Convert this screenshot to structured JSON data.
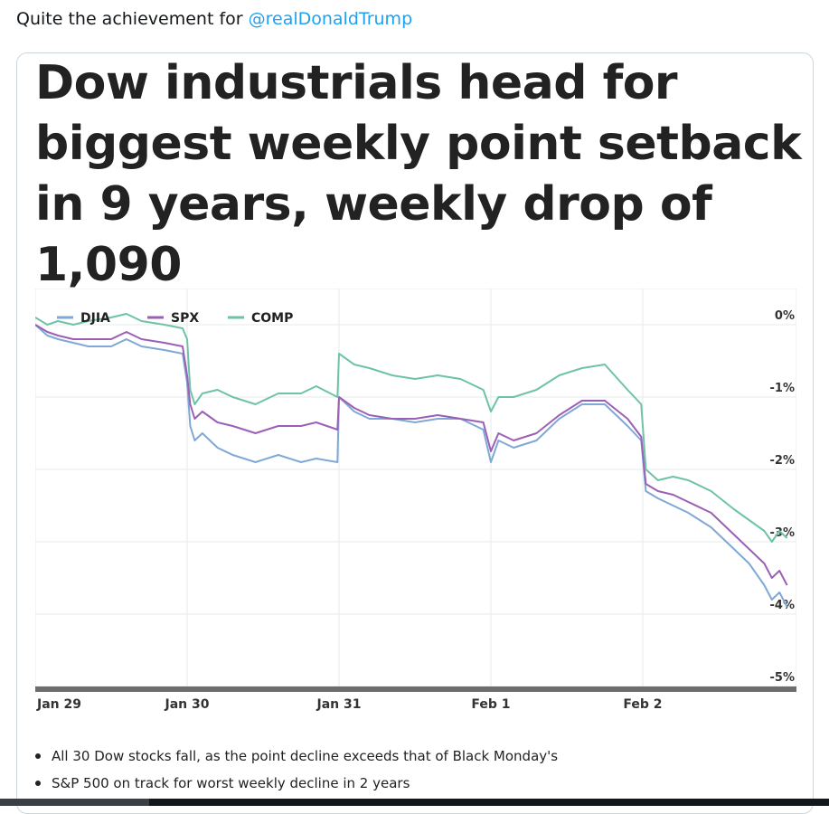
{
  "tweet": {
    "text": "Quite the achievement for",
    "mention": "@realDonaldTrump"
  },
  "card": {
    "headline_lines": [
      "Dow industrials head for",
      "biggest weekly point setback",
      "in 9 years, weekly drop of",
      "1,090"
    ],
    "bullets": [
      "All 30 Dow stocks fall, as the point decline exceeds that of Black Monday's",
      "S&P 500 on track for worst weekly decline in 2 years"
    ]
  },
  "colors": {
    "DJIA": "#7fa8d6",
    "SPX": "#9b5fb6",
    "COMP": "#6ec3a6",
    "mention": "#1da1f2"
  },
  "chart_data": {
    "type": "line",
    "x_categories": [
      "Jan 29",
      "Jan 30",
      "Jan 31",
      "Feb 1",
      "Feb 2"
    ],
    "y_ticks": [
      "0%",
      "-1%",
      "-2%",
      "-3%",
      "-4%",
      "-5%"
    ],
    "ylim": [
      -5,
      0.5
    ],
    "grid": true,
    "legend_position": "top-left",
    "series": [
      {
        "name": "DJIA",
        "values": [
          [
            0.0,
            0.0
          ],
          [
            0.08,
            -0.15
          ],
          [
            0.15,
            -0.2
          ],
          [
            0.25,
            -0.25
          ],
          [
            0.35,
            -0.3
          ],
          [
            0.5,
            -0.3
          ],
          [
            0.6,
            -0.2
          ],
          [
            0.7,
            -0.3
          ],
          [
            0.85,
            -0.35
          ],
          [
            0.97,
            -0.4
          ],
          [
            1.0,
            -0.8
          ],
          [
            1.02,
            -1.4
          ],
          [
            1.05,
            -1.6
          ],
          [
            1.1,
            -1.5
          ],
          [
            1.2,
            -1.7
          ],
          [
            1.3,
            -1.8
          ],
          [
            1.45,
            -1.9
          ],
          [
            1.6,
            -1.8
          ],
          [
            1.75,
            -1.9
          ],
          [
            1.85,
            -1.85
          ],
          [
            1.99,
            -1.9
          ],
          [
            2.0,
            -1.0
          ],
          [
            2.1,
            -1.2
          ],
          [
            2.2,
            -1.3
          ],
          [
            2.35,
            -1.3
          ],
          [
            2.5,
            -1.35
          ],
          [
            2.65,
            -1.3
          ],
          [
            2.8,
            -1.3
          ],
          [
            2.95,
            -1.45
          ],
          [
            3.0,
            -1.9
          ],
          [
            3.05,
            -1.6
          ],
          [
            3.15,
            -1.7
          ],
          [
            3.3,
            -1.6
          ],
          [
            3.45,
            -1.3
          ],
          [
            3.6,
            -1.1
          ],
          [
            3.75,
            -1.1
          ],
          [
            3.9,
            -1.4
          ],
          [
            3.99,
            -1.6
          ],
          [
            4.02,
            -2.3
          ],
          [
            4.1,
            -2.4
          ],
          [
            4.2,
            -2.5
          ],
          [
            4.3,
            -2.6
          ],
          [
            4.45,
            -2.8
          ],
          [
            4.6,
            -3.1
          ],
          [
            4.7,
            -3.3
          ],
          [
            4.8,
            -3.6
          ],
          [
            4.85,
            -3.8
          ],
          [
            4.9,
            -3.7
          ],
          [
            4.95,
            -3.9
          ]
        ]
      },
      {
        "name": "SPX",
        "values": [
          [
            0.0,
            0.0
          ],
          [
            0.08,
            -0.1
          ],
          [
            0.15,
            -0.15
          ],
          [
            0.25,
            -0.2
          ],
          [
            0.35,
            -0.2
          ],
          [
            0.5,
            -0.2
          ],
          [
            0.6,
            -0.1
          ],
          [
            0.7,
            -0.2
          ],
          [
            0.85,
            -0.25
          ],
          [
            0.97,
            -0.3
          ],
          [
            1.0,
            -0.7
          ],
          [
            1.02,
            -1.1
          ],
          [
            1.05,
            -1.3
          ],
          [
            1.1,
            -1.2
          ],
          [
            1.2,
            -1.35
          ],
          [
            1.3,
            -1.4
          ],
          [
            1.45,
            -1.5
          ],
          [
            1.6,
            -1.4
          ],
          [
            1.75,
            -1.4
          ],
          [
            1.85,
            -1.35
          ],
          [
            1.99,
            -1.45
          ],
          [
            2.0,
            -1.0
          ],
          [
            2.1,
            -1.15
          ],
          [
            2.2,
            -1.25
          ],
          [
            2.35,
            -1.3
          ],
          [
            2.5,
            -1.3
          ],
          [
            2.65,
            -1.25
          ],
          [
            2.8,
            -1.3
          ],
          [
            2.95,
            -1.35
          ],
          [
            3.0,
            -1.75
          ],
          [
            3.05,
            -1.5
          ],
          [
            3.15,
            -1.6
          ],
          [
            3.3,
            -1.5
          ],
          [
            3.45,
            -1.25
          ],
          [
            3.6,
            -1.05
          ],
          [
            3.75,
            -1.05
          ],
          [
            3.9,
            -1.3
          ],
          [
            3.99,
            -1.55
          ],
          [
            4.02,
            -2.2
          ],
          [
            4.1,
            -2.3
          ],
          [
            4.2,
            -2.35
          ],
          [
            4.3,
            -2.45
          ],
          [
            4.45,
            -2.6
          ],
          [
            4.6,
            -2.9
          ],
          [
            4.7,
            -3.1
          ],
          [
            4.8,
            -3.3
          ],
          [
            4.85,
            -3.5
          ],
          [
            4.9,
            -3.4
          ],
          [
            4.95,
            -3.6
          ]
        ]
      },
      {
        "name": "COMP",
        "values": [
          [
            0.0,
            0.1
          ],
          [
            0.08,
            0.0
          ],
          [
            0.15,
            0.05
          ],
          [
            0.25,
            0.0
          ],
          [
            0.35,
            0.05
          ],
          [
            0.5,
            0.1
          ],
          [
            0.6,
            0.15
          ],
          [
            0.7,
            0.05
          ],
          [
            0.85,
            0.0
          ],
          [
            0.97,
            -0.05
          ],
          [
            1.0,
            -0.2
          ],
          [
            1.02,
            -0.9
          ],
          [
            1.05,
            -1.1
          ],
          [
            1.1,
            -0.95
          ],
          [
            1.2,
            -0.9
          ],
          [
            1.3,
            -1.0
          ],
          [
            1.45,
            -1.1
          ],
          [
            1.6,
            -0.95
          ],
          [
            1.75,
            -0.95
          ],
          [
            1.85,
            -0.85
          ],
          [
            1.99,
            -1.0
          ],
          [
            2.0,
            -0.4
          ],
          [
            2.1,
            -0.55
          ],
          [
            2.2,
            -0.6
          ],
          [
            2.35,
            -0.7
          ],
          [
            2.5,
            -0.75
          ],
          [
            2.65,
            -0.7
          ],
          [
            2.8,
            -0.75
          ],
          [
            2.95,
            -0.9
          ],
          [
            3.0,
            -1.2
          ],
          [
            3.05,
            -1.0
          ],
          [
            3.15,
            -1.0
          ],
          [
            3.3,
            -0.9
          ],
          [
            3.45,
            -0.7
          ],
          [
            3.6,
            -0.6
          ],
          [
            3.75,
            -0.55
          ],
          [
            3.9,
            -0.9
          ],
          [
            3.99,
            -1.1
          ],
          [
            4.02,
            -2.0
          ],
          [
            4.1,
            -2.15
          ],
          [
            4.2,
            -2.1
          ],
          [
            4.3,
            -2.15
          ],
          [
            4.45,
            -2.3
          ],
          [
            4.6,
            -2.55
          ],
          [
            4.7,
            -2.7
          ],
          [
            4.8,
            -2.85
          ],
          [
            4.85,
            -3.0
          ],
          [
            4.9,
            -2.85
          ],
          [
            4.95,
            -2.95
          ]
        ]
      }
    ]
  }
}
